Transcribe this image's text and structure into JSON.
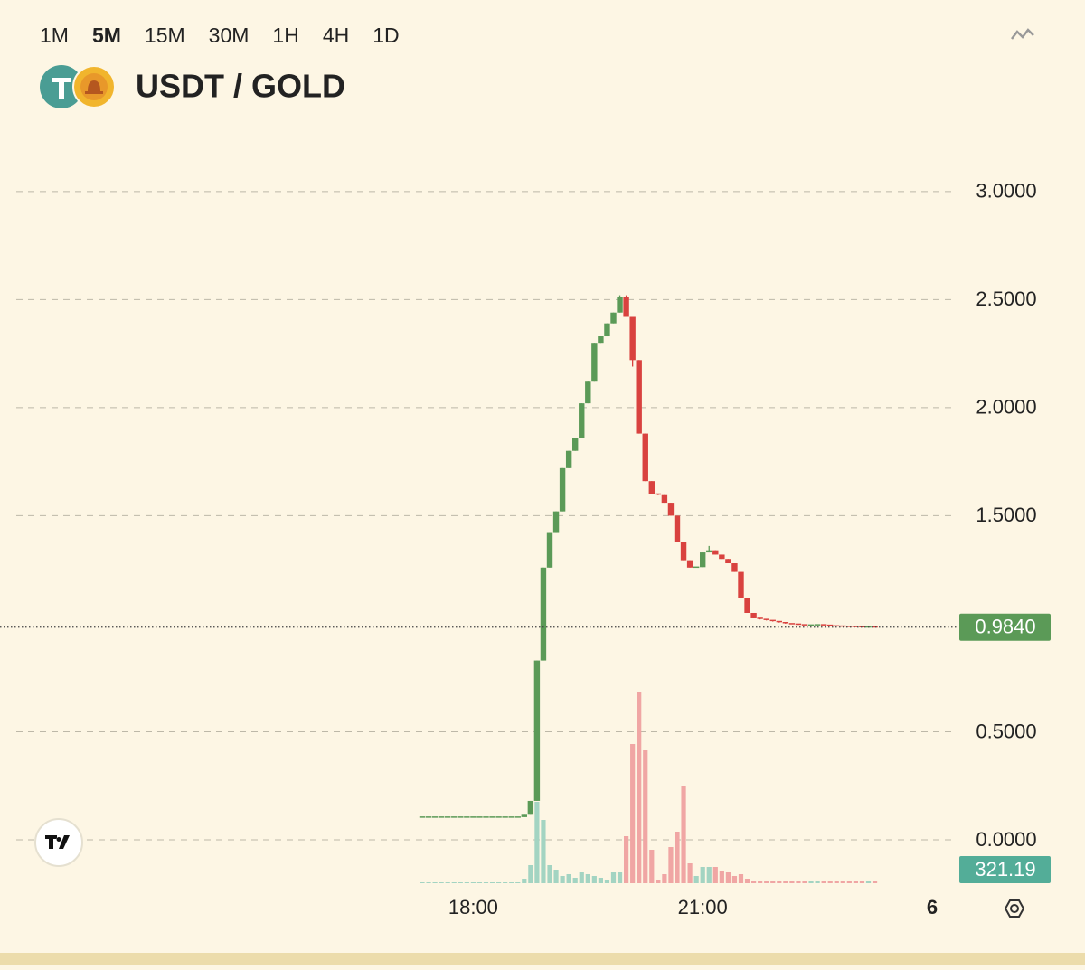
{
  "chart_data": {
    "type": "candlestick",
    "title": "USDT / GOLD",
    "timeframes": [
      "1M",
      "5M",
      "15M",
      "30M",
      "1H",
      "4H",
      "1D"
    ],
    "active_timeframe": 1,
    "categories": [
      null,
      null,
      null,
      null,
      null,
      null,
      null,
      null,
      "18:00",
      null,
      null,
      null,
      null,
      null,
      null,
      null,
      null,
      null,
      null,
      null,
      null,
      null,
      null,
      null,
      null,
      null,
      null,
      null,
      null,
      null,
      null,
      null,
      null,
      null,
      null,
      null,
      null,
      null,
      null,
      null,
      null,
      null,
      null,
      null,
      "21:00",
      null,
      null,
      null,
      null,
      null,
      null,
      null,
      null,
      null,
      null,
      null,
      null,
      null,
      null,
      null,
      null,
      null,
      null,
      null,
      null,
      null,
      null,
      null,
      null,
      null,
      null,
      null,
      null,
      null,
      null,
      null,
      null,
      null,
      null,
      null,
      "6"
    ],
    "x_bold_ticks": [
      80
    ],
    "open": [
      0.105,
      0.105,
      0.105,
      0.105,
      0.105,
      0.105,
      0.105,
      0.105,
      0.105,
      0.105,
      0.105,
      0.105,
      0.105,
      0.105,
      0.105,
      0.105,
      0.105,
      0.12,
      0.18,
      0.83,
      1.26,
      1.42,
      1.52,
      1.72,
      1.8,
      1.86,
      2.02,
      2.12,
      2.3,
      2.33,
      2.39,
      2.44,
      2.51,
      2.42,
      2.22,
      1.88,
      1.66,
      1.6,
      1.595,
      1.56,
      1.5,
      1.38,
      1.29,
      1.26,
      1.262,
      1.33,
      1.34,
      1.32,
      1.3,
      1.28,
      1.24,
      1.12,
      1.05,
      1.025,
      1.02,
      1.015,
      1.01,
      1.005,
      1.0,
      0.998,
      0.995,
      0.994,
      0.994,
      0.995,
      0.993,
      0.99,
      0.989,
      0.988,
      0.987,
      0.986,
      0.985,
      0.985,
      null,
      null,
      null,
      null,
      null,
      null,
      null,
      null,
      null
    ],
    "high": [
      0.105,
      0.105,
      0.105,
      0.105,
      0.105,
      0.105,
      0.105,
      0.105,
      0.105,
      0.105,
      0.105,
      0.105,
      0.105,
      0.105,
      0.105,
      0.105,
      0.12,
      0.18,
      0.83,
      1.26,
      1.42,
      1.52,
      1.72,
      1.8,
      1.86,
      2.02,
      2.12,
      2.3,
      2.33,
      2.39,
      2.44,
      2.52,
      2.52,
      2.42,
      2.22,
      1.88,
      1.66,
      1.6,
      1.595,
      1.56,
      1.5,
      1.38,
      1.29,
      1.262,
      1.33,
      1.36,
      1.34,
      1.32,
      1.3,
      1.28,
      1.24,
      1.12,
      1.05,
      1.025,
      1.02,
      1.015,
      1.01,
      1.005,
      1.0,
      0.998,
      0.995,
      0.994,
      0.995,
      0.995,
      0.993,
      0.99,
      0.989,
      0.988,
      0.987,
      0.986,
      0.985,
      0.985,
      null,
      null,
      null,
      null,
      null,
      null,
      null,
      null,
      null
    ],
    "low": [
      0.105,
      0.105,
      0.105,
      0.105,
      0.105,
      0.105,
      0.105,
      0.105,
      0.105,
      0.105,
      0.105,
      0.105,
      0.105,
      0.105,
      0.105,
      0.105,
      0.105,
      0.12,
      0.18,
      0.83,
      1.26,
      1.42,
      1.52,
      1.72,
      1.8,
      1.86,
      2.02,
      2.12,
      2.3,
      2.33,
      2.39,
      2.44,
      2.42,
      2.19,
      1.88,
      1.66,
      1.6,
      1.595,
      1.56,
      1.5,
      1.38,
      1.29,
      1.26,
      1.26,
      1.262,
      1.33,
      1.32,
      1.3,
      1.28,
      1.24,
      1.12,
      1.05,
      1.025,
      1.02,
      1.015,
      1.01,
      1.005,
      1.0,
      0.998,
      0.995,
      0.994,
      0.994,
      0.994,
      0.993,
      0.99,
      0.989,
      0.988,
      0.987,
      0.986,
      0.985,
      0.985,
      0.984,
      null,
      null,
      null,
      null,
      null,
      null,
      null,
      null,
      null
    ],
    "close": [
      0.105,
      0.105,
      0.105,
      0.105,
      0.105,
      0.105,
      0.105,
      0.105,
      0.105,
      0.105,
      0.105,
      0.105,
      0.105,
      0.105,
      0.105,
      0.105,
      0.12,
      0.18,
      0.83,
      1.26,
      1.42,
      1.52,
      1.72,
      1.8,
      1.86,
      2.02,
      2.12,
      2.3,
      2.33,
      2.39,
      2.44,
      2.51,
      2.42,
      2.22,
      1.88,
      1.66,
      1.6,
      1.595,
      1.56,
      1.5,
      1.38,
      1.29,
      1.26,
      1.262,
      1.33,
      1.34,
      1.32,
      1.3,
      1.28,
      1.24,
      1.12,
      1.05,
      1.025,
      1.02,
      1.015,
      1.01,
      1.005,
      1.0,
      0.998,
      0.995,
      0.994,
      0.994,
      0.995,
      0.993,
      0.99,
      0.989,
      0.988,
      0.987,
      0.986,
      0.985,
      0.985,
      0.984,
      null,
      null,
      null,
      null,
      null,
      null,
      null,
      null,
      null
    ],
    "volume": [
      160,
      160,
      160,
      160,
      160,
      160,
      160,
      160,
      160,
      160,
      160,
      160,
      160,
      160,
      160,
      160,
      800,
      3200,
      14400,
      11200,
      3200,
      2400,
      1280,
      1600,
      960,
      1920,
      1600,
      1280,
      960,
      640,
      1920,
      1920,
      8320,
      24640,
      33920,
      23520,
      5920,
      640,
      1600,
      6400,
      9120,
      17280,
      3520,
      1280,
      2880,
      2880,
      2880,
      2240,
      1920,
      1280,
      1600,
      800,
      320,
      320,
      320,
      320,
      320,
      320,
      320,
      320,
      320,
      320,
      320,
      320,
      320,
      320,
      320,
      320,
      320,
      320,
      320,
      321.19,
      null,
      null,
      null,
      null,
      null,
      null,
      null,
      null,
      null
    ],
    "last_price_label": "0.9840",
    "last_volume_label": "321.19",
    "ylim": [
      -0.25,
      3.15
    ],
    "yticks": [
      {
        "value": 0,
        "label": "0.0000"
      },
      {
        "value": 0.5,
        "label": "0.5000"
      },
      {
        "value": 1.5,
        "label": "1.5000"
      },
      {
        "value": 2,
        "label": "2.0000"
      },
      {
        "value": 2.5,
        "label": "2.5000"
      },
      {
        "value": 3,
        "label": "3.0000"
      }
    ],
    "volume_lim": [
      0,
      40000
    ],
    "grid": true,
    "up_color": "#5b9a57",
    "down_color": "#d9423f",
    "volume_up_color": "#a3d4c2",
    "volume_down_color": "#f0a6a4",
    "volume_badge_color": "#53ad98"
  }
}
